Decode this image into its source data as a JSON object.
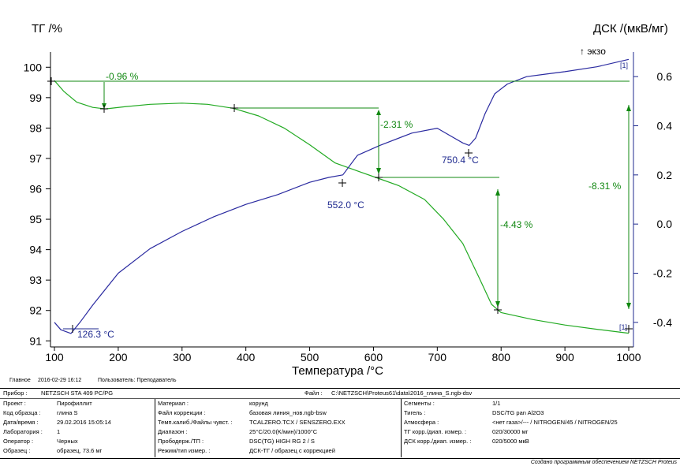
{
  "chart_data": {
    "type": "line",
    "y_left_label": "ТГ /%",
    "y_right_label": "ДСК /(мкВ/мг)",
    "exo_label": "↑ экзо",
    "xlabel": "Температура /°C",
    "xlim": [
      100,
      1000
    ],
    "ylim_left": [
      90.8,
      100.5
    ],
    "ylim_right": [
      -0.5,
      0.7
    ],
    "x_ticks": [
      "100",
      "200",
      "300",
      "400",
      "500",
      "600",
      "700",
      "800",
      "900",
      "1000"
    ],
    "y_left_ticks": [
      "100",
      "99",
      "98",
      "97",
      "96",
      "95",
      "94",
      "93",
      "92",
      "91"
    ],
    "y_right_ticks": [
      "0.6",
      "0.4",
      "0.2",
      "0.0",
      "-0.2",
      "-0.4"
    ],
    "curve_tags": [
      "[1]",
      "[1]"
    ],
    "series": [
      {
        "name": "ТГ",
        "color": "#22aa22",
        "x": [
          100,
          115,
          135,
          160,
          180,
          210,
          250,
          300,
          340,
          380,
          420,
          460,
          500,
          540,
          580,
          607,
          640,
          680,
          710,
          740,
          765,
          785,
          800,
          850,
          900,
          950,
          1000
        ],
        "y": [
          99.56,
          99.2,
          98.85,
          98.68,
          98.63,
          98.7,
          98.78,
          98.82,
          98.78,
          98.65,
          98.4,
          98.0,
          97.45,
          96.85,
          96.55,
          96.35,
          96.1,
          95.65,
          95.0,
          94.2,
          93.1,
          92.2,
          91.93,
          91.7,
          91.52,
          91.38,
          91.25
        ]
      },
      {
        "name": "ДСК",
        "color": "#2a2aa0",
        "x": [
          100,
          110,
          126,
          140,
          160,
          200,
          250,
          300,
          350,
          400,
          450,
          500,
          530,
          552,
          575,
          610,
          660,
          700,
          720,
          740,
          750,
          760,
          775,
          790,
          810,
          840,
          870,
          900,
          950,
          1000
        ],
        "y": [
          -0.4,
          -0.43,
          -0.445,
          -0.4,
          -0.33,
          -0.2,
          -0.1,
          -0.03,
          0.03,
          0.08,
          0.12,
          0.17,
          0.19,
          0.2,
          0.28,
          0.32,
          0.37,
          0.39,
          0.36,
          0.33,
          0.32,
          0.35,
          0.45,
          0.53,
          0.57,
          0.6,
          0.61,
          0.62,
          0.64,
          0.67
        ]
      }
    ],
    "annotations": [
      {
        "text": "-0.96 %",
        "color": "green"
      },
      {
        "text": "-2.31 %",
        "color": "green"
      },
      {
        "text": "-4.43 %",
        "color": "green"
      },
      {
        "text": "-8.31 %",
        "color": "green"
      },
      {
        "text": "126.3 °C",
        "color": "blue"
      },
      {
        "text": "552.0 °C",
        "color": "blue"
      },
      {
        "text": "750.4 °C",
        "color": "blue"
      }
    ]
  },
  "footer": {
    "main_label": "Главное",
    "datetime": "2016-02-29 16:12",
    "user": "Пользователь: Преподаватель"
  },
  "meta": {
    "instrument_label": "Прибор :",
    "instrument": "NETZSCH STA 409 PC/PG",
    "file_label": "Файл :",
    "file": "C:\\NETZSCH\\Proteus61\\data\\2016_глина_S.ngb-dsv",
    "rows": [
      {
        "l1": "Проект :",
        "v1": "Пирофиллит",
        "l2": "Материал :",
        "v2": "корунд",
        "l3": "Сегменты :",
        "v3": "1/1"
      },
      {
        "l1": "Код образца :",
        "v1": "глина S",
        "l2": "Файл коррекции :",
        "v2": "базовая линия_нов.ngb-bsw",
        "l3": "Тигель :",
        "v3": "DSC/TG pan Al2O3"
      },
      {
        "l1": "Дата/время :",
        "v1": "29.02.2016 15:05:14",
        "l2": "Темп.калиб./Файлы чувст. :",
        "v2": "TCALZERO.TCX / SENSZERO.EXX",
        "l3": "Атмосфера :",
        "v3": "<нет газа>/--- / NITROGEN/45 / NITROGEN/25"
      },
      {
        "l1": "Лаборатория :",
        "v1": "1",
        "l2": "Диапазон :",
        "v2": "25°C/20.0(K/мин)/1000°C",
        "l3": "ТГ корр./диап. измер. :",
        "v3": "020/30000 мг"
      },
      {
        "l1": "Оператор :",
        "v1": "Черных",
        "l2": "Прободерж./ТП :",
        "v2": "DSC(TG) HIGH RG 2 / S",
        "l3": "ДСК корр./диап. измер. :",
        "v3": "020/5000 мкВ"
      },
      {
        "l1": "Образец :",
        "v1": "образец, 73.6 мг",
        "l2": "Режим/тип измер. :",
        "v2": "ДСК-ТГ / образец с коррекцией",
        "l3": "",
        "v3": ""
      }
    ],
    "credit": "Создано программным обеспечением NETZSCH Proteus"
  }
}
